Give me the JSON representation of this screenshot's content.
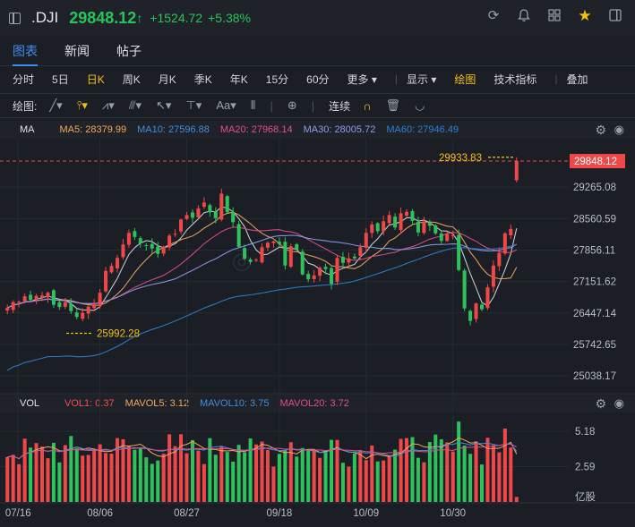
{
  "header": {
    "symbol": ".DJI",
    "price": "29848.12",
    "arrow": "↑",
    "change": "+1524.72",
    "change_pct": "+5.38%",
    "icons": [
      "refresh-icon",
      "bell-icon",
      "grid-icon",
      "star-icon",
      "sidebar-icon"
    ]
  },
  "tabs": [
    {
      "label": "图表",
      "active": true
    },
    {
      "label": "新闻",
      "active": false
    },
    {
      "label": "帖子",
      "active": false
    }
  ],
  "periods": {
    "items": [
      "分时",
      "5日",
      "日K",
      "周K",
      "月K",
      "季K",
      "年K",
      "15分",
      "60分",
      "更多 ▾"
    ],
    "selected": "日K",
    "display": "显示 ▾",
    "draw": "绘图",
    "tech": "技术指标",
    "overlay": "叠加"
  },
  "drawbar": {
    "label": "绘图:",
    "continuous": "连续"
  },
  "ma_row": {
    "label": "MA",
    "items": [
      {
        "text": "MA5: 28379.99",
        "color": "#f0a860"
      },
      {
        "text": "MA10: 27596.88",
        "color": "#3f8fd9"
      },
      {
        "text": "MA20: 27968.14",
        "color": "#e0508a"
      },
      {
        "text": "MA30: 28005.72",
        "color": "#8f9cf0"
      },
      {
        "text": "MA60: 27946.49",
        "color": "#2f7fd0"
      }
    ]
  },
  "vol_row": {
    "label": "VOL",
    "items": [
      {
        "text": "VOL1: 0.37",
        "color": "#f05050"
      },
      {
        "text": "MAVOL5: 3.12",
        "color": "#f0a860"
      },
      {
        "text": "MAVOL10: 3.75",
        "color": "#3f8fd9"
      },
      {
        "text": "MAVOL20: 3.72",
        "color": "#e0508a"
      }
    ]
  },
  "chart_data": {
    "type": "candlestick",
    "price_axis": {
      "ticks": [
        "29265.08",
        "28560.59",
        "27856.11",
        "27151.62",
        "26447.14",
        "25742.65",
        "25038.17"
      ],
      "range": [
        24640,
        30350
      ],
      "last_price_label": "29848.12",
      "high_label": "29933.83",
      "low_label": "25992.28"
    },
    "x_axis": {
      "ticks": [
        "07/16",
        "08/06",
        "08/27",
        "09/18",
        "10/09",
        "10/30"
      ]
    },
    "volume_axis": {
      "ticks": [
        "5.18",
        "2.59"
      ],
      "unit": "亿股",
      "range": [
        0,
        6.5
      ]
    },
    "close": [
      26560,
      26690,
      26700,
      26820,
      26740,
      26830,
      26840,
      26900,
      26630,
      26580,
      26690,
      26490,
      26360,
      26450,
      26590,
      26640,
      26900,
      27390,
      27500,
      27680,
      27980,
      28240,
      28150,
      28010,
      27950,
      27890,
      27770,
      27930,
      28180,
      28220,
      28540,
      28640,
      28580,
      28790,
      28920,
      28700,
      28570,
      29120,
      28700,
      28480,
      27930,
      27660,
      27590,
      27640,
      27920,
      28020,
      28050,
      27990,
      27510,
      27940,
      27860,
      27310,
      27200,
      27290,
      27460,
      27430,
      27100,
      27680,
      27570,
      27670,
      27670,
      27920,
      28240,
      28430,
      28280,
      28500,
      28640,
      28360,
      28680,
      28710,
      28510,
      28250,
      28490,
      28400,
      28230,
      28060,
      28220,
      28190,
      27410,
      26550,
      26270,
      26660,
      26530,
      27020,
      27510,
      27790,
      28230,
      28330,
      29848
    ],
    "colors": {
      "up": "#f04848",
      "down": "#2ec25c"
    }
  }
}
